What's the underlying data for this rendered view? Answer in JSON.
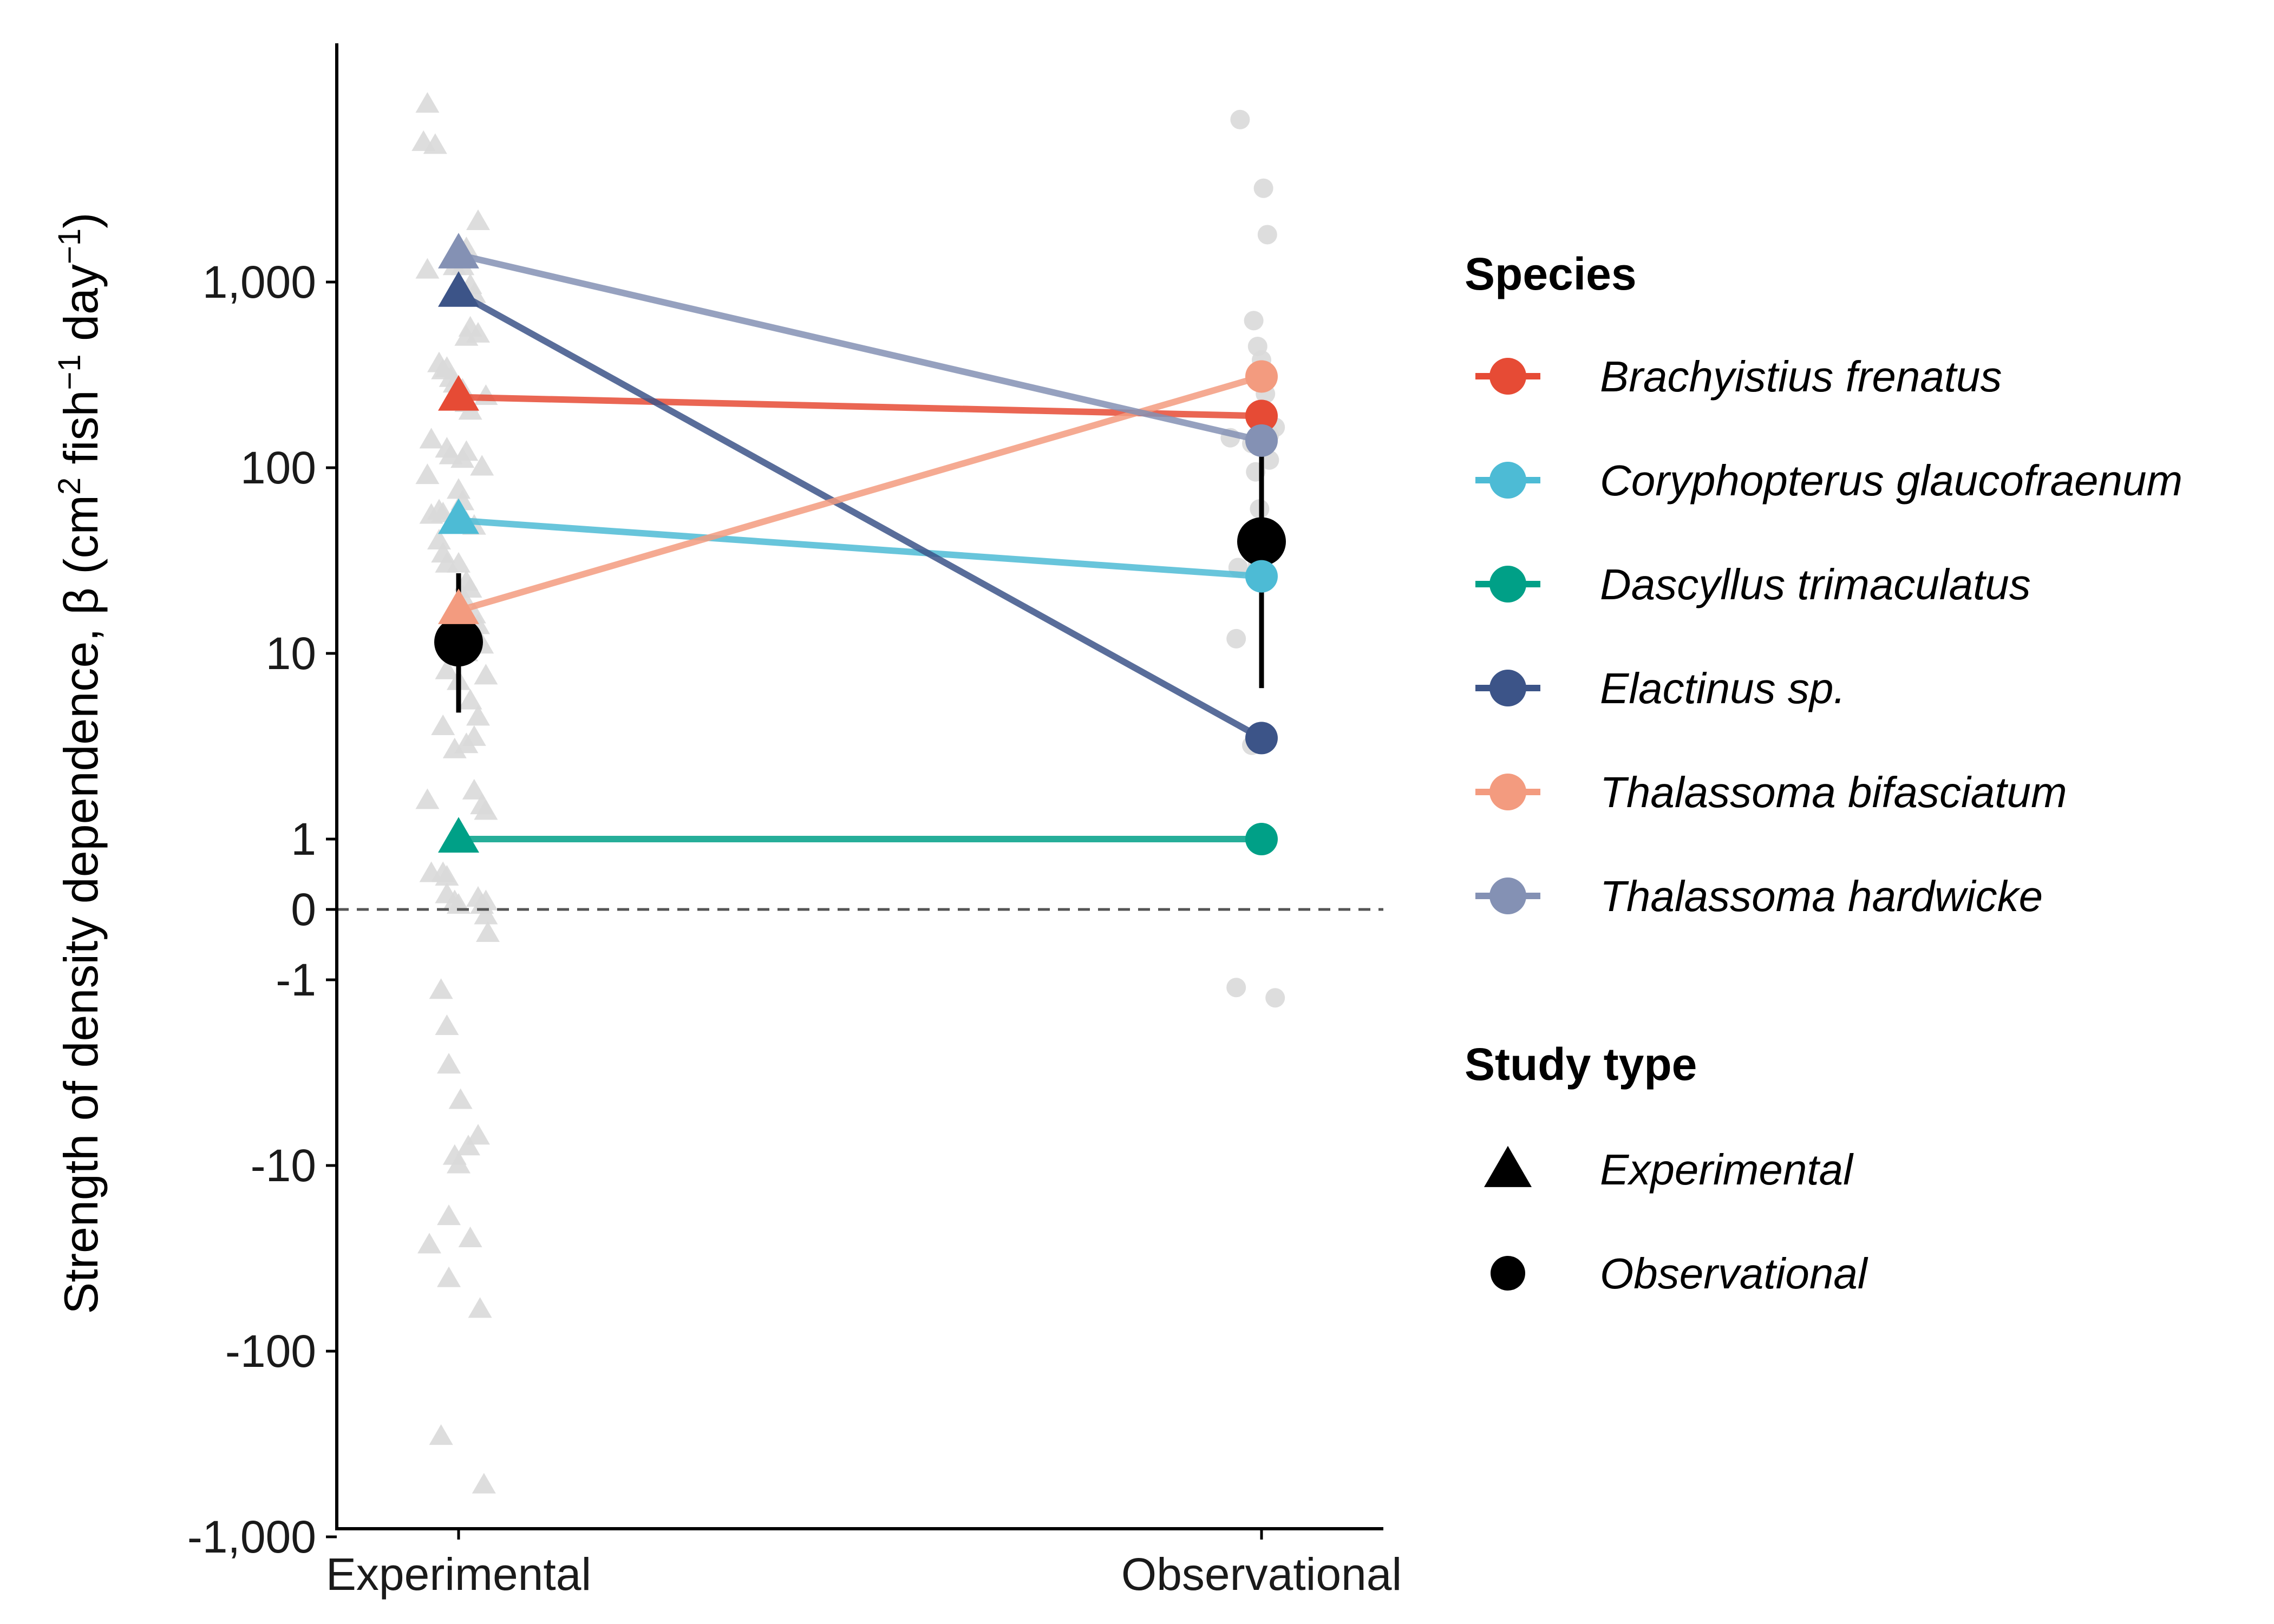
{
  "chart_data": {
    "type": "scatter",
    "x_categories": [
      "Experimental",
      "Observational"
    ],
    "ylabel_main": "Strength of density dependence, β (cm",
    "ylabel_sup1": "2",
    "ylabel_mid1": " fish",
    "ylabel_sup2": "−1",
    "ylabel_mid2": " day",
    "ylabel_sup3": "−1",
    "ylabel_end": ")",
    "y_scale": "pseudo-log",
    "y_ticks": [
      -1000,
      -100,
      -10,
      -1,
      0,
      1,
      10,
      100,
      1000
    ],
    "y_tick_labels": [
      "-1,000",
      "-100",
      "-10",
      "-1",
      "0",
      "1",
      "10",
      "100",
      "1,000"
    ],
    "reference_line": 0,
    "species": [
      {
        "name": "Brachyistius frenatus",
        "color": "#E64B35",
        "experimental": 240,
        "observational": 190
      },
      {
        "name": "Coryphopterus glaucofraenum",
        "color": "#4DBBD5",
        "experimental": 52,
        "observational": 26
      },
      {
        "name": "Dascyllus trimaculatus",
        "color": "#00A087",
        "experimental": 1,
        "observational": 1
      },
      {
        "name": "Elactinus sp.",
        "color": "#3C5488",
        "experimental": 870,
        "observational": 3.5
      },
      {
        "name": "Thalassoma bifasciatum",
        "color": "#F39B7F",
        "experimental": 17,
        "observational": 310
      },
      {
        "name": "Thalassoma hardwicke",
        "color": "#8491B4",
        "experimental": 1400,
        "observational": 140
      }
    ],
    "means": [
      {
        "group": "Experimental",
        "value": 11.5,
        "ci": [
          4.8,
          27
        ]
      },
      {
        "group": "Observational",
        "value": 40,
        "ci": [
          6.5,
          230
        ]
      }
    ],
    "background_points": {
      "Experimental": [
        {
          "dx": -0.08,
          "y": 9000
        },
        {
          "dx": -0.09,
          "y": 5600
        },
        {
          "dx": -0.06,
          "y": 5400
        },
        {
          "dx": 0.05,
          "y": 2100
        },
        {
          "dx": -0.08,
          "y": 1150
        },
        {
          "dx": 0.02,
          "y": 1500
        },
        {
          "dx": -0.01,
          "y": 1200
        },
        {
          "dx": 0.03,
          "y": 950
        },
        {
          "dx": 0.04,
          "y": 850
        },
        {
          "dx": 0.01,
          "y": 1200
        },
        {
          "dx": 0.03,
          "y": 560
        },
        {
          "dx": 0.05,
          "y": 520
        },
        {
          "dx": 0.02,
          "y": 500
        },
        {
          "dx": -0.05,
          "y": 360
        },
        {
          "dx": -0.04,
          "y": 330
        },
        {
          "dx": -0.03,
          "y": 340
        },
        {
          "dx": -0.02,
          "y": 300
        },
        {
          "dx": -0.01,
          "y": 280
        },
        {
          "dx": 0.01,
          "y": 260
        },
        {
          "dx": 0.02,
          "y": 220
        },
        {
          "dx": 0.07,
          "y": 240
        },
        {
          "dx": 0.03,
          "y": 200
        },
        {
          "dx": -0.07,
          "y": 140
        },
        {
          "dx": -0.03,
          "y": 125
        },
        {
          "dx": -0.02,
          "y": 115
        },
        {
          "dx": 0.01,
          "y": 110
        },
        {
          "dx": 0.02,
          "y": 120
        },
        {
          "dx": 0.06,
          "y": 100
        },
        {
          "dx": -0.08,
          "y": 90
        },
        {
          "dx": 0.0,
          "y": 75
        },
        {
          "dx": 0.01,
          "y": 65
        },
        {
          "dx": -0.07,
          "y": 55
        },
        {
          "dx": -0.05,
          "y": 58
        },
        {
          "dx": -0.04,
          "y": 56
        },
        {
          "dx": 0.02,
          "y": 50
        },
        {
          "dx": 0.04,
          "y": 48
        },
        {
          "dx": -0.05,
          "y": 40
        },
        {
          "dx": -0.04,
          "y": 34
        },
        {
          "dx": -0.03,
          "y": 30
        },
        {
          "dx": 0.0,
          "y": 30
        },
        {
          "dx": 0.02,
          "y": 24
        },
        {
          "dx": 0.03,
          "y": 22
        },
        {
          "dx": 0.01,
          "y": 20
        },
        {
          "dx": 0.04,
          "y": 16
        },
        {
          "dx": 0.05,
          "y": 14
        },
        {
          "dx": -0.02,
          "y": 12
        },
        {
          "dx": -0.01,
          "y": 11
        },
        {
          "dx": 0.02,
          "y": 10
        },
        {
          "dx": 0.06,
          "y": 11
        },
        {
          "dx": -0.03,
          "y": 8
        },
        {
          "dx": 0.0,
          "y": 7
        },
        {
          "dx": 0.07,
          "y": 7.5
        },
        {
          "dx": 0.03,
          "y": 5.5
        },
        {
          "dx": 0.05,
          "y": 4.5
        },
        {
          "dx": -0.04,
          "y": 4
        },
        {
          "dx": 0.04,
          "y": 3.5
        },
        {
          "dx": -0.01,
          "y": 3
        },
        {
          "dx": 0.02,
          "y": 3.2
        },
        {
          "dx": -0.08,
          "y": 1.6
        },
        {
          "dx": 0.04,
          "y": 1.8
        },
        {
          "dx": 0.06,
          "y": 1.5
        },
        {
          "dx": 0.07,
          "y": 1.4
        },
        {
          "dx": -0.07,
          "y": 0.5
        },
        {
          "dx": -0.03,
          "y": 0.45
        },
        {
          "dx": -0.04,
          "y": 0.5
        },
        {
          "dx": -0.03,
          "y": 0.2
        },
        {
          "dx": -0.01,
          "y": 0.1
        },
        {
          "dx": 0.0,
          "y": 0.05
        },
        {
          "dx": 0.05,
          "y": 0.15
        },
        {
          "dx": 0.07,
          "y": 0.1
        },
        {
          "dx": 0.06,
          "y": 0.05
        },
        {
          "dx": 0.07,
          "y": -0.1
        },
        {
          "dx": 0.075,
          "y": -0.35
        },
        {
          "dx": -0.045,
          "y": -1.15
        },
        {
          "dx": -0.03,
          "y": -1.8
        },
        {
          "dx": -0.025,
          "y": -2.9
        },
        {
          "dx": 0.005,
          "y": -4.5
        },
        {
          "dx": -0.01,
          "y": -9
        },
        {
          "dx": 0.0,
          "y": -10
        },
        {
          "dx": 0.025,
          "y": -8
        },
        {
          "dx": 0.05,
          "y": -7
        },
        {
          "dx": -0.075,
          "y": -27
        },
        {
          "dx": -0.025,
          "y": -19
        },
        {
          "dx": 0.03,
          "y": -25
        },
        {
          "dx": -0.025,
          "y": -41
        },
        {
          "dx": 0.055,
          "y": -60
        },
        {
          "dx": -0.045,
          "y": -290
        },
        {
          "dx": 0.065,
          "y": -530
        }
      ],
      "Observational": [
        {
          "dx": -0.055,
          "y": 7500
        },
        {
          "dx": 0.005,
          "y": 3200
        },
        {
          "dx": 0.015,
          "y": 1800
        },
        {
          "dx": -0.02,
          "y": 620
        },
        {
          "dx": -0.01,
          "y": 450
        },
        {
          "dx": 0.0,
          "y": 380
        },
        {
          "dx": 0.01,
          "y": 250
        },
        {
          "dx": 0.035,
          "y": 165
        },
        {
          "dx": 0.02,
          "y": 150
        },
        {
          "dx": -0.08,
          "y": 145
        },
        {
          "dx": -0.025,
          "y": 135
        },
        {
          "dx": 0.02,
          "y": 110
        },
        {
          "dx": -0.015,
          "y": 95
        },
        {
          "dx": -0.005,
          "y": 60
        },
        {
          "dx": 0.0,
          "y": 45
        },
        {
          "dx": -0.01,
          "y": 30
        },
        {
          "dx": -0.06,
          "y": 29
        },
        {
          "dx": -0.065,
          "y": 12
        },
        {
          "dx": -0.025,
          "y": 3.2
        },
        {
          "dx": -0.065,
          "y": -1.1
        },
        {
          "dx": 0.035,
          "y": -1.25
        }
      ]
    },
    "legend_species_title": "Species",
    "legend_study_title": "Study type",
    "legend_study": [
      {
        "name": "Experimental",
        "shape": "triangle"
      },
      {
        "name": "Observational",
        "shape": "circle"
      }
    ],
    "colors": {
      "mean": "#000000",
      "background_points": "#d9d9d9",
      "axis": "#000000",
      "reference_line": "#555555"
    }
  }
}
